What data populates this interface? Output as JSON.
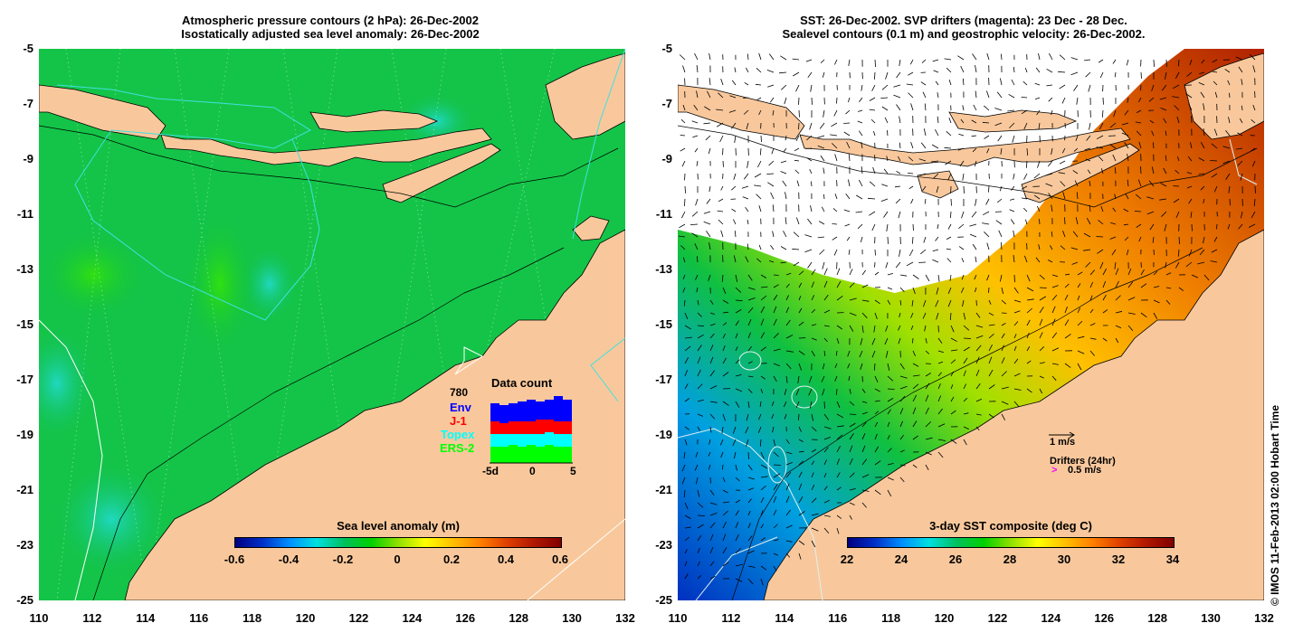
{
  "left_panel": {
    "title_line1": "Atmospheric pressure contours (2 hPa): 26-Dec-2002",
    "title_line2": "Isostatically adjusted sea level anomaly: 26-Dec-2002",
    "colorbar": {
      "title": "Sea level anomaly (m)",
      "ticks": [
        "-0.6",
        "-0.4",
        "-0.2",
        "0",
        "0.2",
        "0.4",
        "0.6"
      ],
      "range": [
        -0.6,
        0.6
      ]
    },
    "data_count": {
      "title": "Data count",
      "max_label": "780",
      "x_ticks": [
        "-5d",
        "0",
        "5"
      ],
      "legend": [
        {
          "name": "Env",
          "color": "#0000ff"
        },
        {
          "name": "J-1",
          "color": "#ff0000"
        },
        {
          "name": "Topex",
          "color": "#00ffff"
        },
        {
          "name": "ERS-2",
          "color": "#00ff00"
        }
      ]
    }
  },
  "right_panel": {
    "title_line1": "SST: 26-Dec-2002. SVP drifters (magenta): 23 Dec - 28 Dec.",
    "title_line2": "Sealevel contours (0.1 m) and geostrophic velocity: 26-Dec-2002.",
    "colorbar": {
      "title": "3-day SST composite (deg C)",
      "ticks": [
        "22",
        "24",
        "26",
        "28",
        "30",
        "32",
        "34"
      ],
      "range": [
        22,
        34
      ]
    },
    "velocity_key": "1 m/s",
    "drifters_key": "Drifters (24hr)",
    "drifters_speed": "0.5 m/s",
    "drifters_symbol": ">"
  },
  "axes": {
    "x_ticks": [
      "110",
      "112",
      "114",
      "116",
      "118",
      "120",
      "122",
      "124",
      "126",
      "128",
      "130",
      "132"
    ],
    "y_ticks": [
      "-5",
      "-7",
      "-9",
      "-11",
      "-13",
      "-15",
      "-17",
      "-19",
      "-21",
      "-23",
      "-25"
    ],
    "lon_range": [
      110,
      132
    ],
    "lat_range": [
      -25,
      -5
    ]
  },
  "copyright": "© IMOS 11-Feb-2013 02:00 Hobart Time",
  "colors": {
    "land": "#f8c89c",
    "ocean_green": "#10c040",
    "warm_sst": "#e07000",
    "cool_sst": "#0040c0",
    "contour_cyan": "#40e0e0"
  }
}
